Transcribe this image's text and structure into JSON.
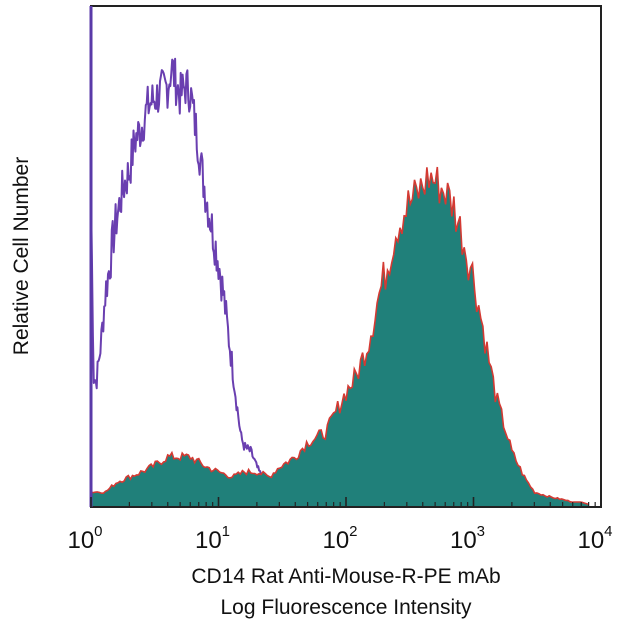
{
  "chart_data": {
    "type": "area",
    "x_scale": "log",
    "xlim": [
      1,
      10000
    ],
    "ylim": [
      0,
      100
    ],
    "grid": false,
    "xticks": [
      {
        "base": "10",
        "exp": "0",
        "value": 1
      },
      {
        "base": "10",
        "exp": "1",
        "value": 10
      },
      {
        "base": "10",
        "exp": "2",
        "value": 100
      },
      {
        "base": "10",
        "exp": "3",
        "value": 1000
      },
      {
        "base": "10",
        "exp": "4",
        "value": 10000
      }
    ],
    "xlabel_line1": "CD14 Rat Anti-Mouse-R-PE mAb",
    "xlabel_line2": "Log Fluorescence Intensity",
    "ylabel": "Relative Cell Number",
    "series": [
      {
        "role": "control",
        "style": "outline",
        "color": "#6a3fb0",
        "x": [
          1.0,
          1.05,
          1.1,
          1.15,
          1.2,
          1.3,
          1.4,
          1.5,
          1.6,
          1.8,
          2.0,
          2.2,
          2.5,
          2.8,
          3.0,
          3.3,
          3.6,
          4.0,
          4.3,
          4.6,
          5.0,
          5.5,
          6.0,
          6.5,
          7.0,
          7.5,
          8.0,
          9.0,
          10.0,
          11.0,
          12.0,
          13.0,
          14.0,
          15.0,
          16.0,
          18.0,
          20.0,
          23.0,
          26.0,
          30.0,
          35.0,
          40.0,
          45.0,
          50.0,
          55.0,
          60.0
        ],
        "y": [
          62,
          26,
          25,
          29,
          33,
          43,
          48,
          54,
          58,
          64,
          67,
          73,
          76,
          80,
          81,
          82,
          83,
          84,
          88,
          85,
          82,
          84,
          83,
          77,
          72,
          66,
          62,
          55,
          49,
          42,
          34,
          27,
          20,
          14,
          12,
          11,
          8,
          5,
          4,
          3,
          2,
          1.5,
          1,
          0.6,
          0.3,
          0
        ]
      },
      {
        "role": "stained",
        "style": "filled",
        "fill": "#20807a",
        "stroke": "#d43a33",
        "x": [
          1.0,
          1.3,
          1.6,
          2.0,
          2.5,
          3.0,
          4.0,
          5.0,
          6.0,
          8.0,
          10.0,
          13.0,
          16.0,
          20.0,
          25.0,
          30.0,
          40.0,
          50.0,
          60.0,
          70.0,
          80.0,
          100.0,
          120.0,
          150.0,
          180.0,
          200.0,
          250.0,
          300.0,
          350.0,
          400.0,
          450.0,
          500.0,
          600.0,
          700.0,
          800.0,
          1000.0,
          1200.0,
          1500.0,
          2000.0,
          2500.0,
          3000.0,
          4000.0,
          5000.0,
          6000.0,
          7000.0,
          8000.0
        ],
        "y": [
          3,
          3,
          5,
          6,
          7,
          8,
          10,
          10,
          10,
          8,
          7,
          6,
          7,
          7,
          6,
          8,
          10,
          13,
          14,
          15,
          18,
          23,
          26,
          33,
          42,
          46,
          56,
          60,
          62,
          64,
          66,
          65,
          63,
          60,
          55,
          46,
          35,
          22,
          11,
          6,
          3,
          2,
          1.5,
          1,
          1,
          0.5
        ]
      }
    ]
  }
}
